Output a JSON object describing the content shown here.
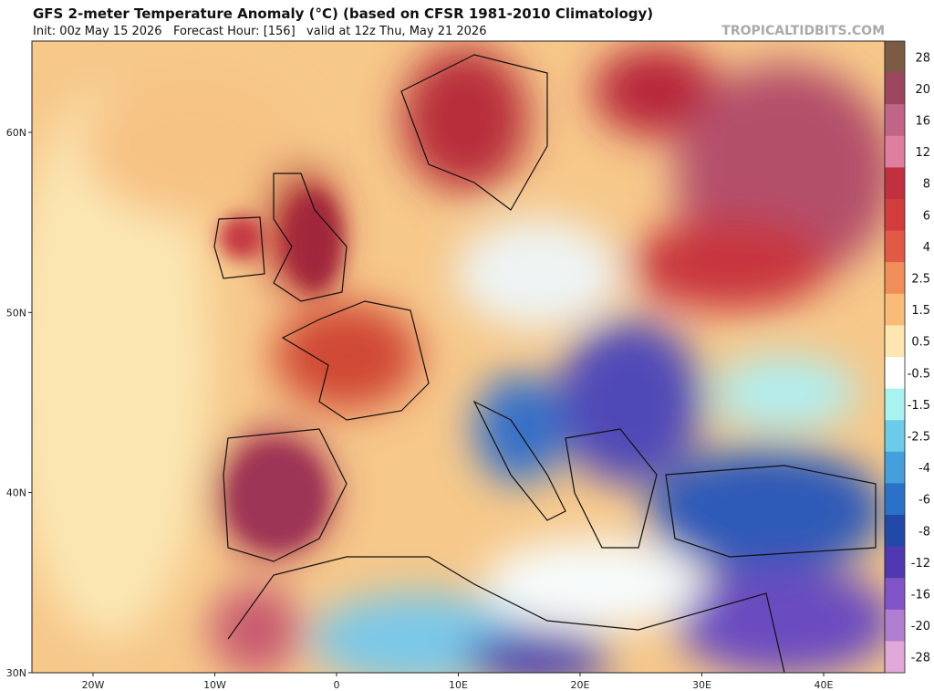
{
  "header": {
    "title": "GFS 2-meter Temperature Anomaly (°C) (based on CFSR 1981-2010 Climatology)",
    "subtitle": "Init: 00z May 15 2026   Forecast Hour: [156]   valid at 12z Thu, May 21 2026",
    "site": "TROPICALTIDBITS.COM"
  },
  "map": {
    "lat_labels": [
      "60N",
      "50N",
      "40N",
      "30N"
    ],
    "lon_labels": [
      "20W",
      "10W",
      "0",
      "10E",
      "20E",
      "30E",
      "40E"
    ]
  },
  "colorbar": {
    "labels": [
      "28",
      "20",
      "16",
      "12",
      "8",
      "6",
      "4",
      "2.5",
      "1.5",
      "0.5",
      "-0.5",
      "-1.5",
      "-2.5",
      "-4",
      "-6",
      "-8",
      "-12",
      "-16",
      "-20",
      "-28"
    ],
    "colors": [
      "#7d5a44",
      "#9c4660",
      "#c06488",
      "#e07ea0",
      "#c0303e",
      "#d23c3c",
      "#e05a44",
      "#f08e5a",
      "#f8bc78",
      "#fde6b0",
      "#ffffff",
      "#a8f2f0",
      "#6ccbe8",
      "#44a0dc",
      "#2a72c8",
      "#2248a8",
      "#5038b0",
      "#8054c8",
      "#b07ed0",
      "#e0a8d8"
    ]
  }
}
